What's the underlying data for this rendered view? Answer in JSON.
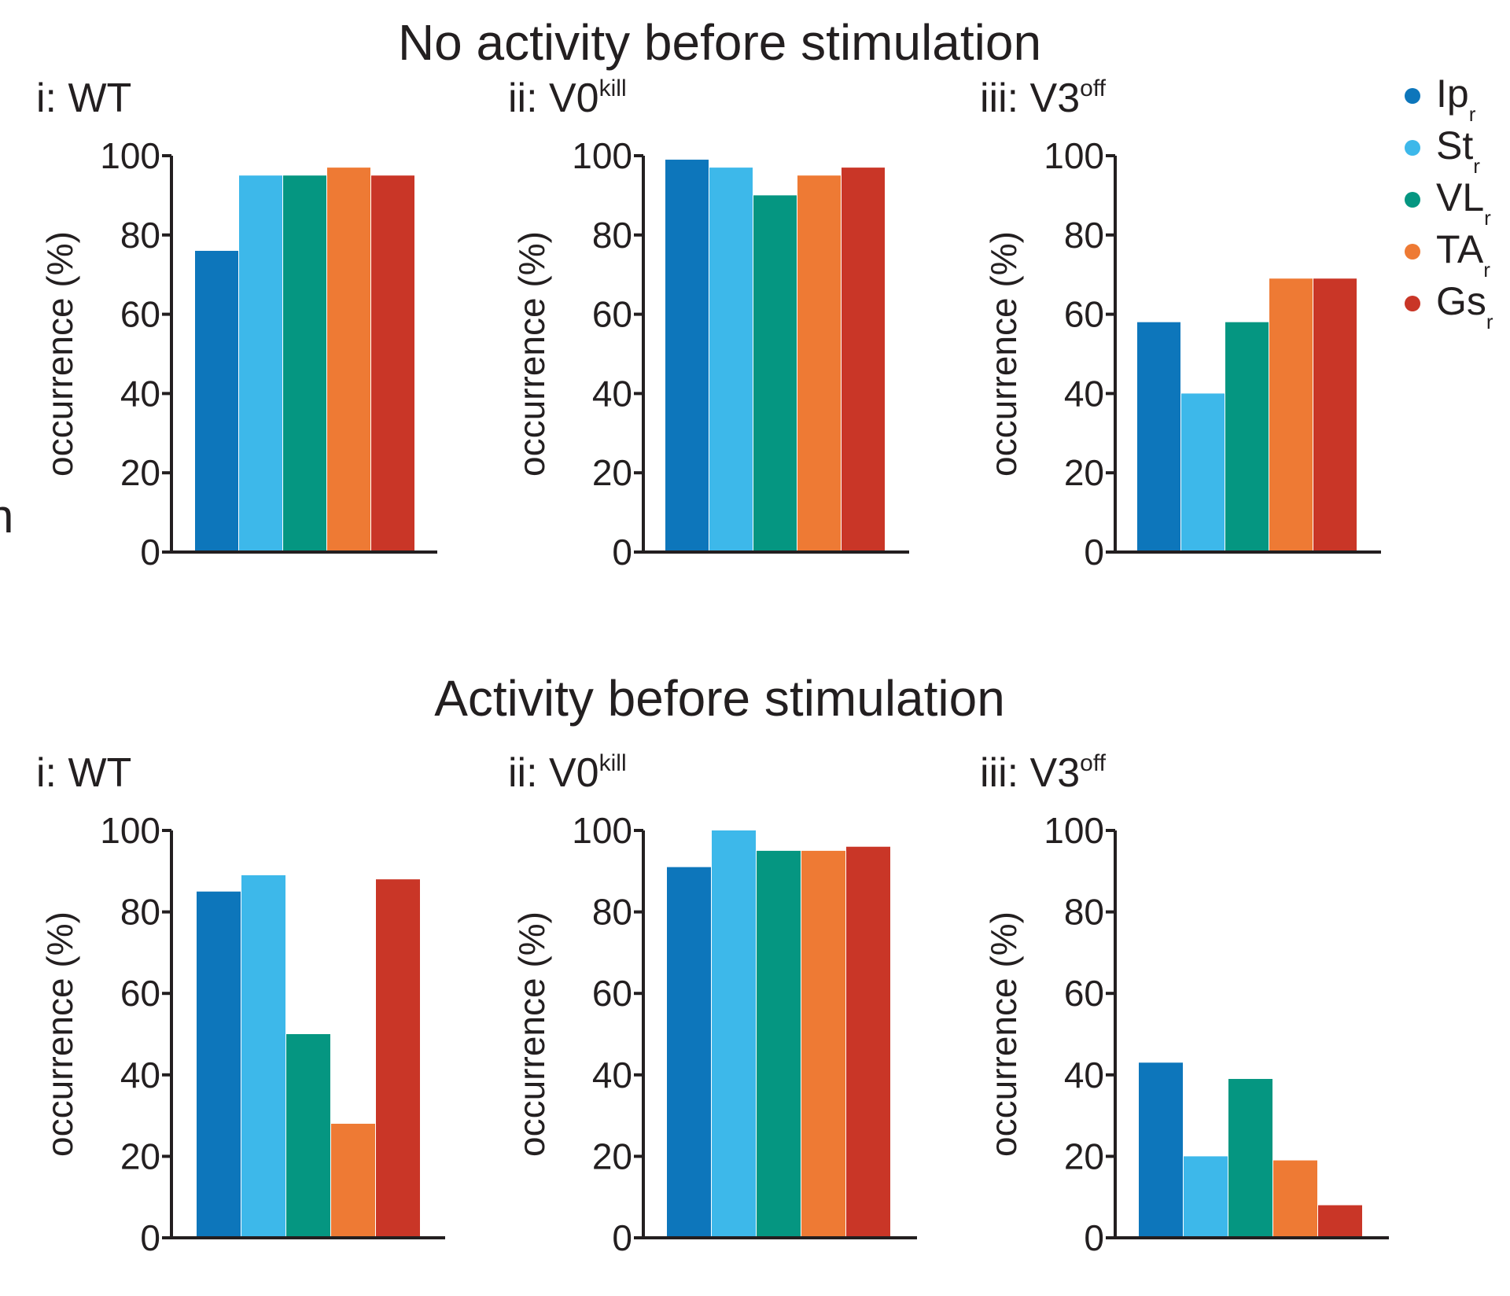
{
  "figure": {
    "cut_letter": "n"
  },
  "legend": {
    "items": [
      {
        "name": "Ip",
        "sub": "r",
        "color": "#0d76bb"
      },
      {
        "name": "St",
        "sub": "r",
        "color": "#3db8ea"
      },
      {
        "name": "VL",
        "sub": "r",
        "color": "#059681"
      },
      {
        "name": "TA",
        "sub": "r",
        "color": "#ee7a34"
      },
      {
        "name": "Gs",
        "sub": "r",
        "color": "#c93627"
      }
    ]
  },
  "chart_data": [
    {
      "type": "bar",
      "section_title": "No activity before stimulation",
      "title_prefix": "i: WT",
      "title_sup": "",
      "categories": [
        "Ip_r",
        "St_r",
        "VL_r",
        "TA_r",
        "Gs_r"
      ],
      "values": [
        76,
        95,
        95,
        97,
        95
      ],
      "xlabel": "",
      "ylabel": "occurrence (%)",
      "ylim": [
        0,
        100
      ],
      "yticks": [
        "0",
        "20",
        "40",
        "60",
        "80",
        "100"
      ]
    },
    {
      "type": "bar",
      "section_title": "No activity before stimulation",
      "title_prefix": "ii: V0",
      "title_sup": "kill",
      "categories": [
        "Ip_r",
        "St_r",
        "VL_r",
        "TA_r",
        "Gs_r"
      ],
      "values": [
        99,
        97,
        90,
        95,
        97
      ],
      "xlabel": "",
      "ylabel": "occurrence (%)",
      "ylim": [
        0,
        100
      ],
      "yticks": [
        "0",
        "20",
        "40",
        "60",
        "80",
        "100"
      ]
    },
    {
      "type": "bar",
      "section_title": "No activity before stimulation",
      "title_prefix": "iii: V3",
      "title_sup": "off",
      "categories": [
        "Ip_r",
        "St_r",
        "VL_r",
        "TA_r",
        "Gs_r"
      ],
      "values": [
        58,
        40,
        58,
        69,
        69
      ],
      "xlabel": "",
      "ylabel": "occurrence (%)",
      "ylim": [
        0,
        100
      ],
      "yticks": [
        "0",
        "20",
        "40",
        "60",
        "80",
        "100"
      ]
    },
    {
      "type": "bar",
      "section_title": "Activity before stimulation",
      "title_prefix": "i: WT",
      "title_sup": "",
      "categories": [
        "Ip_r",
        "St_r",
        "VL_r",
        "TA_r",
        "Gs_r"
      ],
      "values": [
        85,
        89,
        50,
        28,
        88
      ],
      "xlabel": "",
      "ylabel": "occurrence (%)",
      "ylim": [
        0,
        100
      ],
      "yticks": [
        "0",
        "20",
        "40",
        "60",
        "80",
        "100"
      ]
    },
    {
      "type": "bar",
      "section_title": "Activity before stimulation",
      "title_prefix": "ii: V0",
      "title_sup": "kill",
      "categories": [
        "Ip_r",
        "St_r",
        "VL_r",
        "TA_r",
        "Gs_r"
      ],
      "values": [
        91,
        100,
        95,
        95,
        96
      ],
      "xlabel": "",
      "ylabel": "occurrence (%)",
      "ylim": [
        0,
        100
      ],
      "yticks": [
        "0",
        "20",
        "40",
        "60",
        "80",
        "100"
      ]
    },
    {
      "type": "bar",
      "section_title": "Activity before stimulation",
      "title_prefix": "iii: V3",
      "title_sup": "off",
      "categories": [
        "Ip_r",
        "St_r",
        "VL_r",
        "TA_r",
        "Gs_r"
      ],
      "values": [
        43,
        20,
        39,
        19,
        8
      ],
      "xlabel": "",
      "ylabel": "occurrence (%)",
      "ylim": [
        0,
        100
      ],
      "yticks": [
        "0",
        "20",
        "40",
        "60",
        "80",
        "100"
      ]
    }
  ]
}
